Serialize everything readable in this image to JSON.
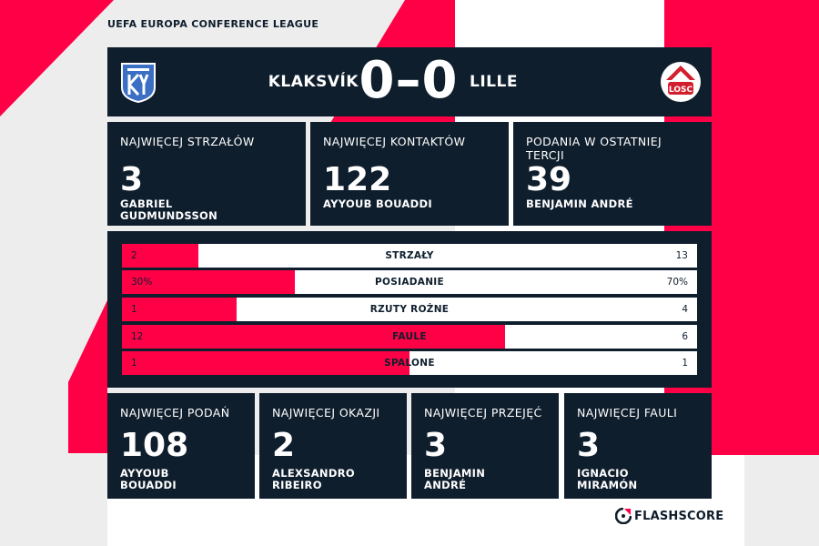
{
  "competition": "UEFA EUROPA CONFERENCE LEAGUE",
  "colors": {
    "navy": "#0f1e2d",
    "accent": "#ff0046",
    "background": "#ededed"
  },
  "match": {
    "home_team": "KLAKSVÍK",
    "away_team": "LILLE",
    "score": "0–0",
    "home_crest_icon": "klaksvik-crest-icon",
    "away_crest_icon": "lille-losc-crest-icon",
    "away_crest_text": "LOSC"
  },
  "top_cards": [
    {
      "label": "NAJWIĘCEJ STRZAŁÓW",
      "value": "3",
      "player_line1": "GABRIEL",
      "player_line2": "GUDMUNDSSON"
    },
    {
      "label": "NAJWIĘCEJ KONTAKTÓW",
      "value": "122",
      "player_line1": "AYYOUB BOUADDI",
      "player_line2": ""
    },
    {
      "label": "PODANIA W OSTATNIEJ TERCJI",
      "value": "39",
      "player_line1": "BENJAMIN ANDRÉ",
      "player_line2": ""
    }
  ],
  "stats": [
    {
      "name": "STRZAŁY",
      "home": "2",
      "away": "13",
      "home_share": 0.1333
    },
    {
      "name": "POSIADANIE",
      "home": "30%",
      "away": "70%",
      "home_share": 0.3
    },
    {
      "name": "RZUTY ROŻNE",
      "home": "1",
      "away": "4",
      "home_share": 0.2
    },
    {
      "name": "FAULE",
      "home": "12",
      "away": "6",
      "home_share": 0.6667
    },
    {
      "name": "SPALONE",
      "home": "1",
      "away": "1",
      "home_share": 0.5
    }
  ],
  "bottom_cards": [
    {
      "label": "NAJWIĘCEJ PODAŃ",
      "value": "108",
      "player_line1": "AYYOUB",
      "player_line2": "BOUADDI"
    },
    {
      "label": "NAJWIĘCEJ OKAZJI",
      "value": "2",
      "player_line1": "ALEXSANDRO",
      "player_line2": "RIBEIRO"
    },
    {
      "label": "NAJWIĘCEJ PRZEJĘĆ",
      "value": "3",
      "player_line1": "BENJAMIN",
      "player_line2": "ANDRÉ"
    },
    {
      "label": "NAJWIĘCEJ FAULI",
      "value": "3",
      "player_line1": "IGNACIO",
      "player_line2": "MIRAMÓN"
    }
  ],
  "brand": {
    "name": "FLASHSCORE",
    "icon": "flashscore-logo-icon"
  }
}
